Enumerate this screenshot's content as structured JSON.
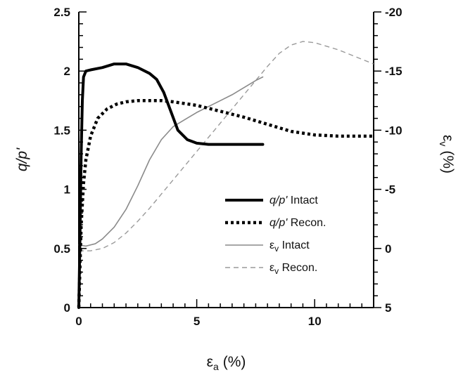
{
  "chart_data": {
    "type": "line",
    "xlabel_base": "ε",
    "xlabel_sub": "a",
    "xlabel_unit": "(%)",
    "ylabel_left": "q/p'",
    "ylabel_right_base": "ε",
    "ylabel_right_sub": "v",
    "ylabel_right_unit": "(%)",
    "xlim": [
      0,
      12.5
    ],
    "ylim_left": [
      0,
      2.5
    ],
    "ylim_right": [
      5,
      -20
    ],
    "x_ticks": [
      0,
      5,
      10
    ],
    "x_tick_labels": [
      "0",
      "5",
      "10"
    ],
    "y_left_ticks": [
      0,
      0.5,
      1,
      1.5,
      2,
      2.5
    ],
    "y_left_tick_labels": [
      "0",
      "0.5",
      "1",
      "1.5",
      "2",
      "2.5"
    ],
    "y_right_ticks": [
      5,
      0,
      -5,
      -10,
      -15,
      -20
    ],
    "y_right_tick_labels": [
      "5",
      "0",
      "-5",
      "-10",
      "-15",
      "-20"
    ],
    "grid": false,
    "legend_position": "center-right",
    "series": [
      {
        "name_main": "q/p'",
        "name_suffix": " Intact",
        "axis": "left",
        "style": "thick-solid",
        "color": "#000000",
        "x": [
          0,
          0.05,
          0.1,
          0.15,
          0.2,
          0.3,
          0.5,
          1.0,
          1.5,
          2.0,
          2.5,
          3.0,
          3.3,
          3.6,
          3.9,
          4.2,
          4.6,
          5.0,
          5.5,
          6.0,
          6.5,
          7.0,
          7.5,
          7.8
        ],
        "y": [
          0,
          0.6,
          1.3,
          1.75,
          1.95,
          2.0,
          2.01,
          2.03,
          2.06,
          2.06,
          2.03,
          1.98,
          1.93,
          1.82,
          1.66,
          1.5,
          1.42,
          1.39,
          1.38,
          1.38,
          1.38,
          1.38,
          1.38,
          1.38
        ]
      },
      {
        "name_main": "q/p'",
        "name_suffix": " Recon.",
        "axis": "left",
        "style": "thick-dotted",
        "color": "#000000",
        "x": [
          0,
          0.1,
          0.2,
          0.3,
          0.5,
          0.8,
          1.2,
          1.6,
          2.0,
          2.5,
          3.0,
          3.5,
          4.0,
          5.0,
          6.0,
          7.0,
          8.0,
          9.0,
          10.0,
          11.0,
          12.0,
          12.5
        ],
        "y": [
          0,
          0.7,
          1.05,
          1.25,
          1.45,
          1.6,
          1.68,
          1.72,
          1.74,
          1.75,
          1.75,
          1.75,
          1.74,
          1.71,
          1.66,
          1.61,
          1.55,
          1.49,
          1.46,
          1.45,
          1.45,
          1.45
        ]
      },
      {
        "name_main": "ε",
        "name_sub": "v",
        "name_suffix": " Intact",
        "axis": "right",
        "style": "thin-solid",
        "color": "#8a8a8a",
        "x": [
          0,
          0.3,
          0.7,
          1.0,
          1.5,
          2.0,
          2.5,
          3.0,
          3.5,
          4.0,
          4.5,
          5.0,
          5.5,
          6.0,
          6.5,
          7.0,
          7.5,
          7.8
        ],
        "y": [
          -0.3,
          -0.2,
          -0.4,
          -0.8,
          -1.8,
          -3.3,
          -5.3,
          -7.5,
          -9.2,
          -10.3,
          -10.9,
          -11.5,
          -12.0,
          -12.5,
          -13.0,
          -13.6,
          -14.2,
          -14.5
        ]
      },
      {
        "name_main": "ε",
        "name_sub": "v",
        "name_suffix": " Recon.",
        "axis": "right",
        "style": "thin-dashed",
        "color": "#9a9a9a",
        "x": [
          0,
          0.5,
          1.0,
          1.5,
          2.0,
          2.5,
          3.0,
          3.5,
          4.0,
          4.5,
          5.0,
          5.5,
          6.0,
          6.5,
          7.0,
          7.5,
          8.0,
          8.5,
          9.0,
          9.5,
          10.0,
          10.5,
          11.0,
          11.5,
          12.0,
          12.5
        ],
        "y": [
          0.2,
          0.2,
          0,
          -0.5,
          -1.3,
          -2.3,
          -3.4,
          -4.6,
          -5.8,
          -7.0,
          -8.2,
          -9.4,
          -10.6,
          -11.8,
          -13.0,
          -14.2,
          -15.4,
          -16.5,
          -17.2,
          -17.5,
          -17.4,
          -17.1,
          -16.8,
          -16.4,
          -16.0,
          -15.6
        ]
      }
    ]
  }
}
